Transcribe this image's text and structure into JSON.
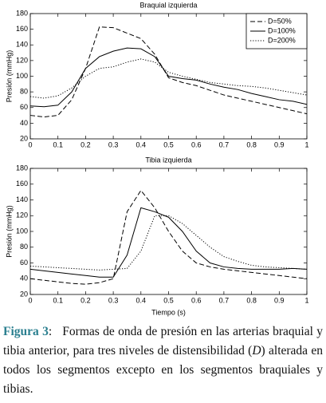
{
  "chart_data": [
    {
      "type": "line",
      "title": "Braquial izquierda",
      "y_label": "Presión (mmHg)",
      "x": [
        0,
        0.05,
        0.1,
        0.15,
        0.2,
        0.25,
        0.3,
        0.35,
        0.4,
        0.45,
        0.5,
        0.55,
        0.6,
        0.65,
        0.7,
        0.75,
        0.8,
        0.85,
        0.9,
        0.95,
        1
      ],
      "series": [
        {
          "name": "D=50%",
          "color": "#000000",
          "linestyle": "dashed",
          "values": [
            50,
            48,
            50,
            70,
            110,
            163,
            162,
            155,
            148,
            128,
            98,
            92,
            88,
            82,
            76,
            72,
            68,
            64,
            60,
            56,
            52
          ]
        },
        {
          "name": "D=100%",
          "color": "#000000",
          "linestyle": "solid",
          "values": [
            62,
            61,
            63,
            80,
            110,
            125,
            132,
            136,
            135,
            125,
            100,
            97,
            95,
            90,
            86,
            83,
            78,
            74,
            70,
            68,
            64
          ]
        },
        {
          "name": "D=200%",
          "color": "#000000",
          "linestyle": "dotted",
          "values": [
            74,
            72,
            75,
            85,
            100,
            110,
            112,
            118,
            122,
            118,
            105,
            100,
            96,
            92,
            90,
            88,
            87,
            85,
            82,
            79,
            76
          ]
        }
      ],
      "xlim": [
        0,
        1
      ],
      "ylim": [
        20,
        180
      ],
      "xticks": [
        0,
        0.1,
        0.2,
        0.3,
        0.4,
        0.5,
        0.6,
        0.7,
        0.8,
        0.9,
        1
      ],
      "yticks": [
        20,
        40,
        60,
        80,
        100,
        120,
        140,
        160,
        180
      ],
      "legend": "upper right"
    },
    {
      "type": "line",
      "title": "Tibia izquierda",
      "y_label": "Presión (mmHg)",
      "x_label": "Tiempo (s)",
      "x": [
        0,
        0.05,
        0.1,
        0.15,
        0.2,
        0.25,
        0.3,
        0.35,
        0.4,
        0.45,
        0.5,
        0.55,
        0.6,
        0.65,
        0.7,
        0.75,
        0.8,
        0.85,
        0.9,
        0.95,
        1
      ],
      "series": [
        {
          "name": "D=50%",
          "color": "#000000",
          "linestyle": "dashed",
          "values": [
            40,
            38,
            36,
            34,
            33,
            35,
            40,
            125,
            152,
            130,
            100,
            75,
            60,
            55,
            52,
            50,
            48,
            46,
            44,
            42,
            40
          ]
        },
        {
          "name": "D=100%",
          "color": "#000000",
          "linestyle": "solid",
          "values": [
            52,
            50,
            48,
            46,
            44,
            42,
            42,
            70,
            130,
            125,
            118,
            100,
            75,
            60,
            55,
            53,
            52,
            52,
            52,
            53,
            52
          ]
        },
        {
          "name": "D=200%",
          "color": "#000000",
          "linestyle": "dotted",
          "values": [
            56,
            55,
            54,
            53,
            52,
            51,
            52,
            53,
            75,
            120,
            120,
            110,
            95,
            80,
            68,
            62,
            57,
            55,
            54,
            53,
            52
          ]
        }
      ],
      "xlim": [
        0,
        1
      ],
      "ylim": [
        20,
        180
      ],
      "xticks": [
        0,
        0.1,
        0.2,
        0.3,
        0.4,
        0.5,
        0.6,
        0.7,
        0.8,
        0.9,
        1
      ],
      "yticks": [
        20,
        40,
        60,
        80,
        100,
        120,
        140,
        160,
        180
      ]
    }
  ],
  "caption": {
    "label": "Figura 3",
    "colon": ":",
    "text_1": "Formas de onda de presión en las arterias braquial y tibia anterior, para tres niveles de distensibilidad (",
    "text_2": "D",
    "text_3": ") alterada en todos los segmentos excepto en los segmentos braquiales y tibias."
  }
}
